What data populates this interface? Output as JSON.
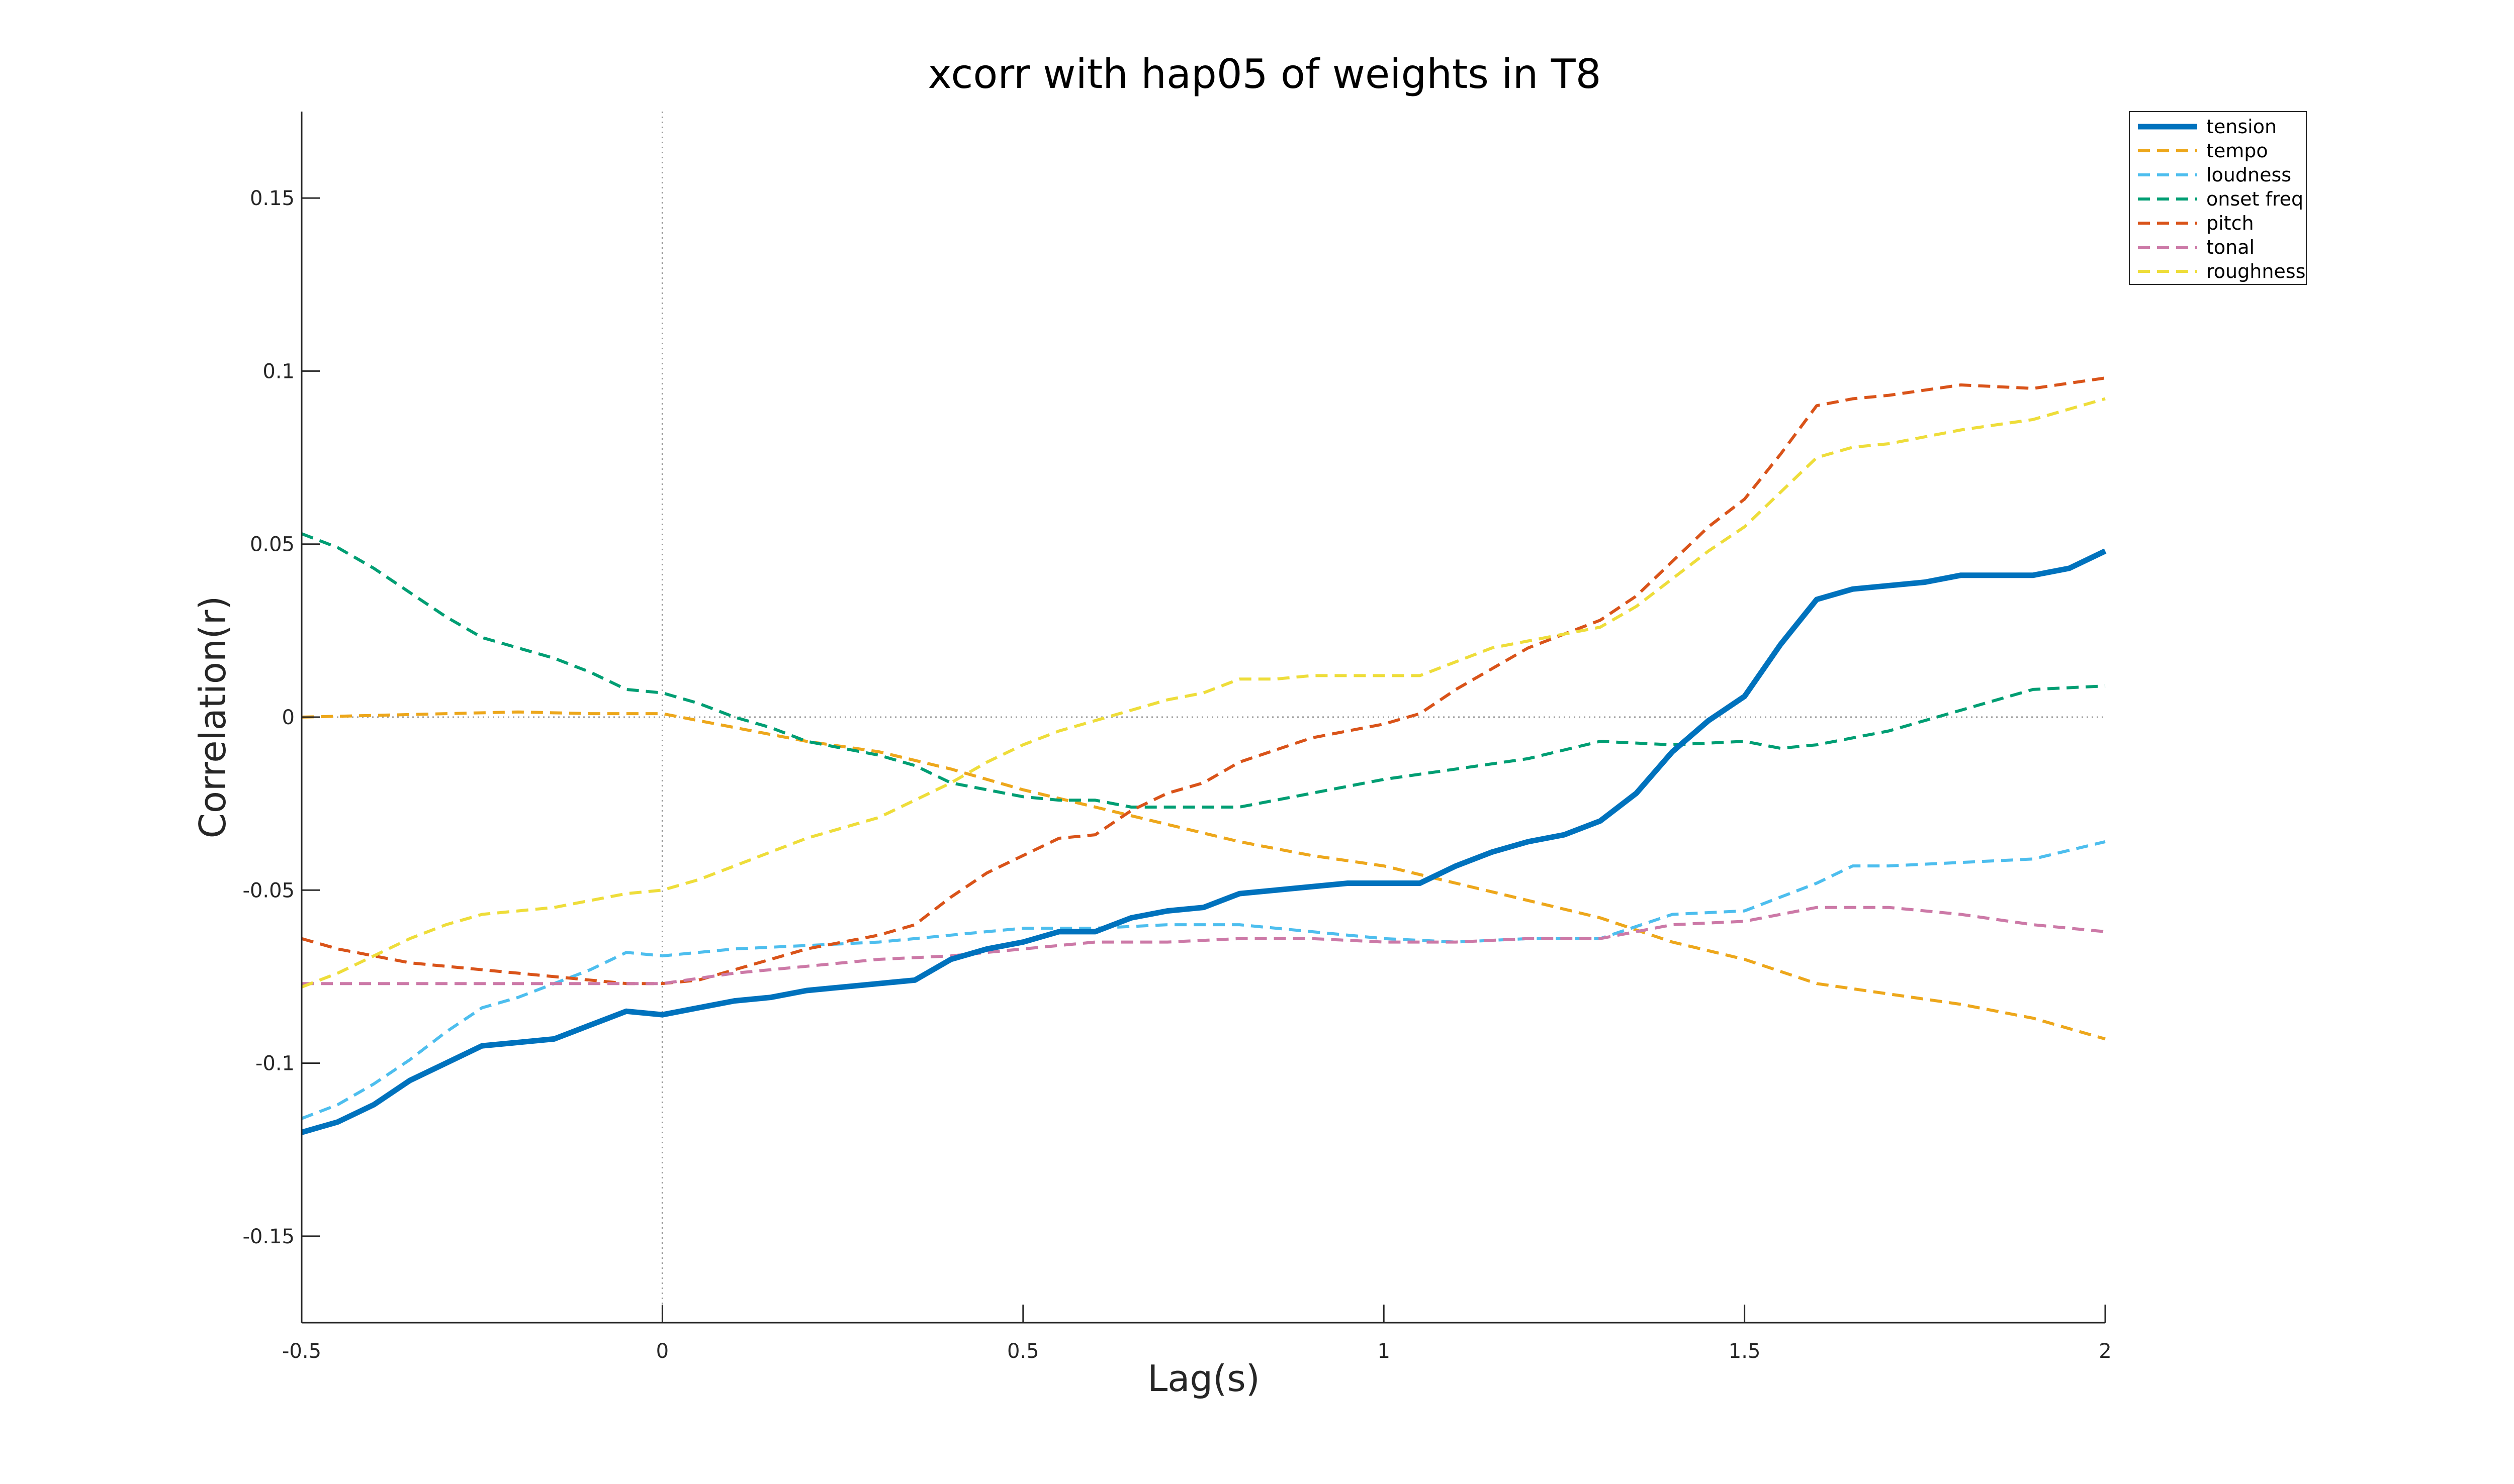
{
  "chart_data": {
    "type": "line",
    "title": "xcorr with hap05 of weights in T8",
    "xlabel": "Lag(s)",
    "ylabel": "Correlation(r)",
    "xlim": [
      -0.5,
      2
    ],
    "ylim": [
      -0.175,
      0.175
    ],
    "xticks": [
      -0.5,
      0,
      0.5,
      1,
      1.5,
      2
    ],
    "xtick_labels": [
      "-0.5",
      "0",
      "0.5",
      "1",
      "1.5",
      "2"
    ],
    "yticks": [
      -0.15,
      -0.1,
      -0.05,
      0,
      0.05,
      0.1,
      0.15
    ],
    "ytick_labels": [
      "-0.15",
      "-0.1",
      "-0.05",
      "0",
      "0.05",
      "0.1",
      "0.15"
    ],
    "grid": false,
    "reference_lines": {
      "x": 0,
      "y": 0,
      "style": "dotted",
      "color": "#9a9a9a"
    },
    "legend_position": "top-right",
    "series": [
      {
        "name": "tension",
        "color": "#0072BD",
        "style": "solid",
        "x": [
          -0.5,
          -0.45,
          -0.4,
          -0.35,
          -0.3,
          -0.25,
          -0.2,
          -0.15,
          -0.1,
          -0.05,
          0,
          0.05,
          0.1,
          0.15,
          0.2,
          0.25,
          0.3,
          0.35,
          0.4,
          0.45,
          0.5,
          0.55,
          0.6,
          0.65,
          0.7,
          0.75,
          0.8,
          0.85,
          0.9,
          0.95,
          1,
          1.05,
          1.1,
          1.15,
          1.2,
          1.25,
          1.3,
          1.35,
          1.4,
          1.45,
          1.5,
          1.55,
          1.6,
          1.65,
          1.7,
          1.75,
          1.8,
          1.85,
          1.9,
          1.95,
          2
        ],
        "y": [
          -0.12,
          -0.117,
          -0.112,
          -0.105,
          -0.1,
          -0.095,
          -0.094,
          -0.093,
          -0.089,
          -0.085,
          -0.086,
          -0.084,
          -0.082,
          -0.081,
          -0.079,
          -0.078,
          -0.077,
          -0.076,
          -0.07,
          -0.067,
          -0.065,
          -0.062,
          -0.062,
          -0.058,
          -0.056,
          -0.055,
          -0.051,
          -0.05,
          -0.049,
          -0.048,
          -0.048,
          -0.048,
          -0.043,
          -0.039,
          -0.036,
          -0.034,
          -0.03,
          -0.022,
          -0.01,
          -0.001,
          0.006,
          0.021,
          0.034,
          0.037,
          0.038,
          0.039,
          0.041,
          0.041,
          0.041,
          0.043,
          0.048
        ]
      },
      {
        "name": "tempo",
        "color": "#EDA71B",
        "style": "dashed",
        "x": [
          -0.5,
          -0.4,
          -0.3,
          -0.2,
          -0.1,
          0,
          0.1,
          0.2,
          0.3,
          0.4,
          0.5,
          0.6,
          0.7,
          0.8,
          0.9,
          1,
          1.1,
          1.2,
          1.3,
          1.4,
          1.5,
          1.6,
          1.7,
          1.8,
          1.9,
          2
        ],
        "y": [
          0.0,
          0.0005,
          0.001,
          0.0015,
          0.001,
          0.001,
          -0.003,
          -0.007,
          -0.01,
          -0.015,
          -0.021,
          -0.026,
          -0.031,
          -0.036,
          -0.04,
          -0.043,
          -0.048,
          -0.053,
          -0.058,
          -0.065,
          -0.07,
          -0.077,
          -0.08,
          -0.083,
          -0.087,
          -0.093
        ]
      },
      {
        "name": "loudness",
        "color": "#4DBEEE",
        "style": "dashed",
        "x": [
          -0.5,
          -0.45,
          -0.4,
          -0.35,
          -0.3,
          -0.25,
          -0.2,
          -0.15,
          -0.1,
          -0.05,
          0,
          0.1,
          0.2,
          0.3,
          0.4,
          0.5,
          0.6,
          0.7,
          0.8,
          0.9,
          1,
          1.1,
          1.2,
          1.3,
          1.4,
          1.5,
          1.55,
          1.6,
          1.65,
          1.7,
          1.8,
          1.9,
          2
        ],
        "y": [
          -0.116,
          -0.112,
          -0.106,
          -0.099,
          -0.091,
          -0.084,
          -0.081,
          -0.077,
          -0.073,
          -0.068,
          -0.069,
          -0.067,
          -0.066,
          -0.065,
          -0.063,
          -0.061,
          -0.061,
          -0.06,
          -0.06,
          -0.062,
          -0.064,
          -0.065,
          -0.064,
          -0.064,
          -0.057,
          -0.056,
          -0.052,
          -0.048,
          -0.043,
          -0.043,
          -0.042,
          -0.041,
          -0.036
        ]
      },
      {
        "name": "onset freq",
        "color": "#009E73",
        "style": "dashed",
        "x": [
          -0.5,
          -0.45,
          -0.4,
          -0.35,
          -0.3,
          -0.25,
          -0.2,
          -0.15,
          -0.1,
          -0.05,
          0,
          0.05,
          0.1,
          0.15,
          0.2,
          0.25,
          0.3,
          0.35,
          0.4,
          0.45,
          0.5,
          0.55,
          0.6,
          0.65,
          0.7,
          0.8,
          0.9,
          1,
          1.1,
          1.2,
          1.3,
          1.4,
          1.5,
          1.55,
          1.6,
          1.7,
          1.8,
          1.9,
          2
        ],
        "y": [
          0.053,
          0.049,
          0.043,
          0.036,
          0.029,
          0.023,
          0.02,
          0.017,
          0.013,
          0.008,
          0.007,
          0.004,
          0.0,
          -0.003,
          -0.007,
          -0.009,
          -0.011,
          -0.014,
          -0.019,
          -0.021,
          -0.023,
          -0.024,
          -0.024,
          -0.026,
          -0.026,
          -0.026,
          -0.022,
          -0.018,
          -0.015,
          -0.012,
          -0.007,
          -0.008,
          -0.007,
          -0.009,
          -0.008,
          -0.004,
          0.002,
          0.008,
          0.009
        ]
      },
      {
        "name": "pitch",
        "color": "#D95319",
        "style": "dashed",
        "x": [
          -0.5,
          -0.45,
          -0.4,
          -0.35,
          -0.3,
          -0.25,
          -0.2,
          -0.15,
          -0.1,
          -0.05,
          0,
          0.05,
          0.1,
          0.15,
          0.2,
          0.25,
          0.3,
          0.35,
          0.4,
          0.45,
          0.5,
          0.55,
          0.6,
          0.65,
          0.7,
          0.75,
          0.8,
          0.9,
          1,
          1.05,
          1.1,
          1.2,
          1.3,
          1.35,
          1.4,
          1.45,
          1.5,
          1.55,
          1.6,
          1.65,
          1.7,
          1.8,
          1.9,
          2
        ],
        "y": [
          -0.064,
          -0.067,
          -0.069,
          -0.071,
          -0.072,
          -0.073,
          -0.074,
          -0.075,
          -0.076,
          -0.077,
          -0.077,
          -0.076,
          -0.073,
          -0.07,
          -0.067,
          -0.065,
          -0.063,
          -0.06,
          -0.052,
          -0.045,
          -0.04,
          -0.035,
          -0.034,
          -0.027,
          -0.022,
          -0.019,
          -0.013,
          -0.006,
          -0.002,
          0.001,
          0.008,
          0.02,
          0.028,
          0.035,
          0.045,
          0.055,
          0.063,
          0.076,
          0.09,
          0.092,
          0.093,
          0.096,
          0.095,
          0.098
        ]
      },
      {
        "name": "tonal",
        "color": "#CC79A7",
        "style": "dashed",
        "x": [
          -0.5,
          -0.4,
          -0.3,
          -0.2,
          -0.1,
          0,
          0.1,
          0.2,
          0.3,
          0.4,
          0.5,
          0.6,
          0.7,
          0.8,
          0.9,
          1,
          1.1,
          1.2,
          1.3,
          1.4,
          1.5,
          1.6,
          1.7,
          1.8,
          1.9,
          2
        ],
        "y": [
          -0.077,
          -0.077,
          -0.077,
          -0.077,
          -0.077,
          -0.077,
          -0.074,
          -0.072,
          -0.07,
          -0.069,
          -0.067,
          -0.065,
          -0.065,
          -0.064,
          -0.064,
          -0.065,
          -0.065,
          -0.064,
          -0.064,
          -0.06,
          -0.059,
          -0.055,
          -0.055,
          -0.057,
          -0.06,
          -0.062
        ]
      },
      {
        "name": "roughness",
        "color": "#EEDD3A",
        "style": "dashed",
        "x": [
          -0.5,
          -0.45,
          -0.4,
          -0.35,
          -0.3,
          -0.25,
          -0.2,
          -0.15,
          -0.1,
          -0.05,
          0,
          0.05,
          0.1,
          0.15,
          0.2,
          0.25,
          0.3,
          0.35,
          0.4,
          0.45,
          0.5,
          0.55,
          0.6,
          0.65,
          0.7,
          0.75,
          0.8,
          0.85,
          0.9,
          0.95,
          1,
          1.05,
          1.1,
          1.15,
          1.2,
          1.25,
          1.3,
          1.35,
          1.4,
          1.45,
          1.5,
          1.55,
          1.6,
          1.65,
          1.7,
          1.8,
          1.9,
          2
        ],
        "y": [
          -0.078,
          -0.074,
          -0.069,
          -0.064,
          -0.06,
          -0.057,
          -0.056,
          -0.055,
          -0.053,
          -0.051,
          -0.05,
          -0.047,
          -0.043,
          -0.039,
          -0.035,
          -0.032,
          -0.029,
          -0.024,
          -0.019,
          -0.013,
          -0.008,
          -0.004,
          -0.001,
          0.002,
          0.005,
          0.007,
          0.011,
          0.011,
          0.012,
          0.012,
          0.012,
          0.012,
          0.016,
          0.02,
          0.022,
          0.024,
          0.026,
          0.032,
          0.04,
          0.048,
          0.055,
          0.065,
          0.075,
          0.078,
          0.079,
          0.083,
          0.086,
          0.092
        ]
      }
    ]
  }
}
